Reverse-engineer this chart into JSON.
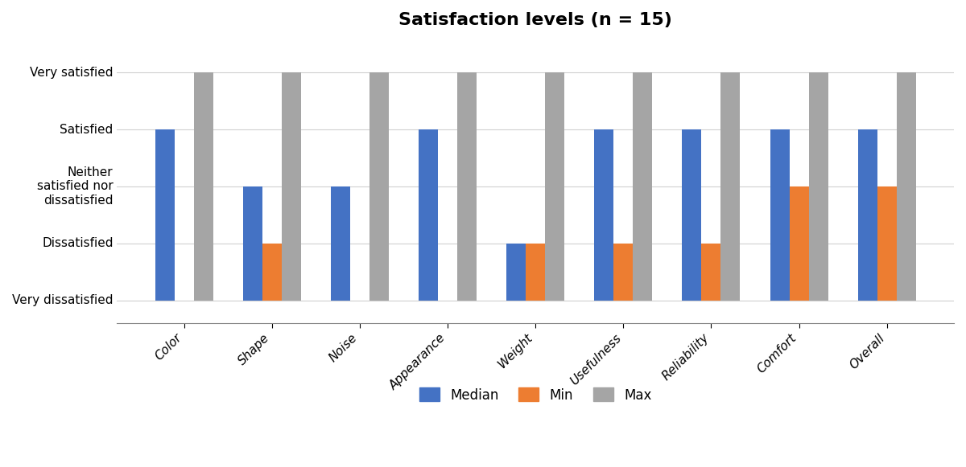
{
  "title": "Satisfaction levels (n = 15)",
  "categories": [
    "Color",
    "Shape",
    "Noise",
    "Appearance",
    "Weight",
    "Usefulness",
    "Reliability",
    "Comfort",
    "Overall"
  ],
  "median": [
    4,
    3,
    3,
    4,
    2,
    4,
    4,
    4,
    4
  ],
  "min": [
    1,
    2,
    1,
    1,
    2,
    2,
    2,
    3,
    3
  ],
  "max": [
    5,
    5,
    5,
    5,
    5,
    5,
    5,
    5,
    5
  ],
  "bar_colors": {
    "Median": "#4472C4",
    "Min": "#ED7D31",
    "Max": "#A5A5A5"
  },
  "ytick_labels": [
    "Very dissatisfied",
    "Dissatisfied",
    "Neither\nsatisfied nor\ndissatisfied",
    "Satisfied",
    "Very satisfied"
  ],
  "ytick_values": [
    1,
    2,
    3,
    4,
    5
  ],
  "ylim": [
    0.6,
    5.6
  ],
  "title_fontsize": 16,
  "legend_labels": [
    "Median",
    "Min",
    "Max"
  ],
  "bar_width": 0.22,
  "bar_bottom": 1,
  "background_color": "#ffffff",
  "figsize": [
    12.0,
    5.81
  ],
  "dpi": 100
}
